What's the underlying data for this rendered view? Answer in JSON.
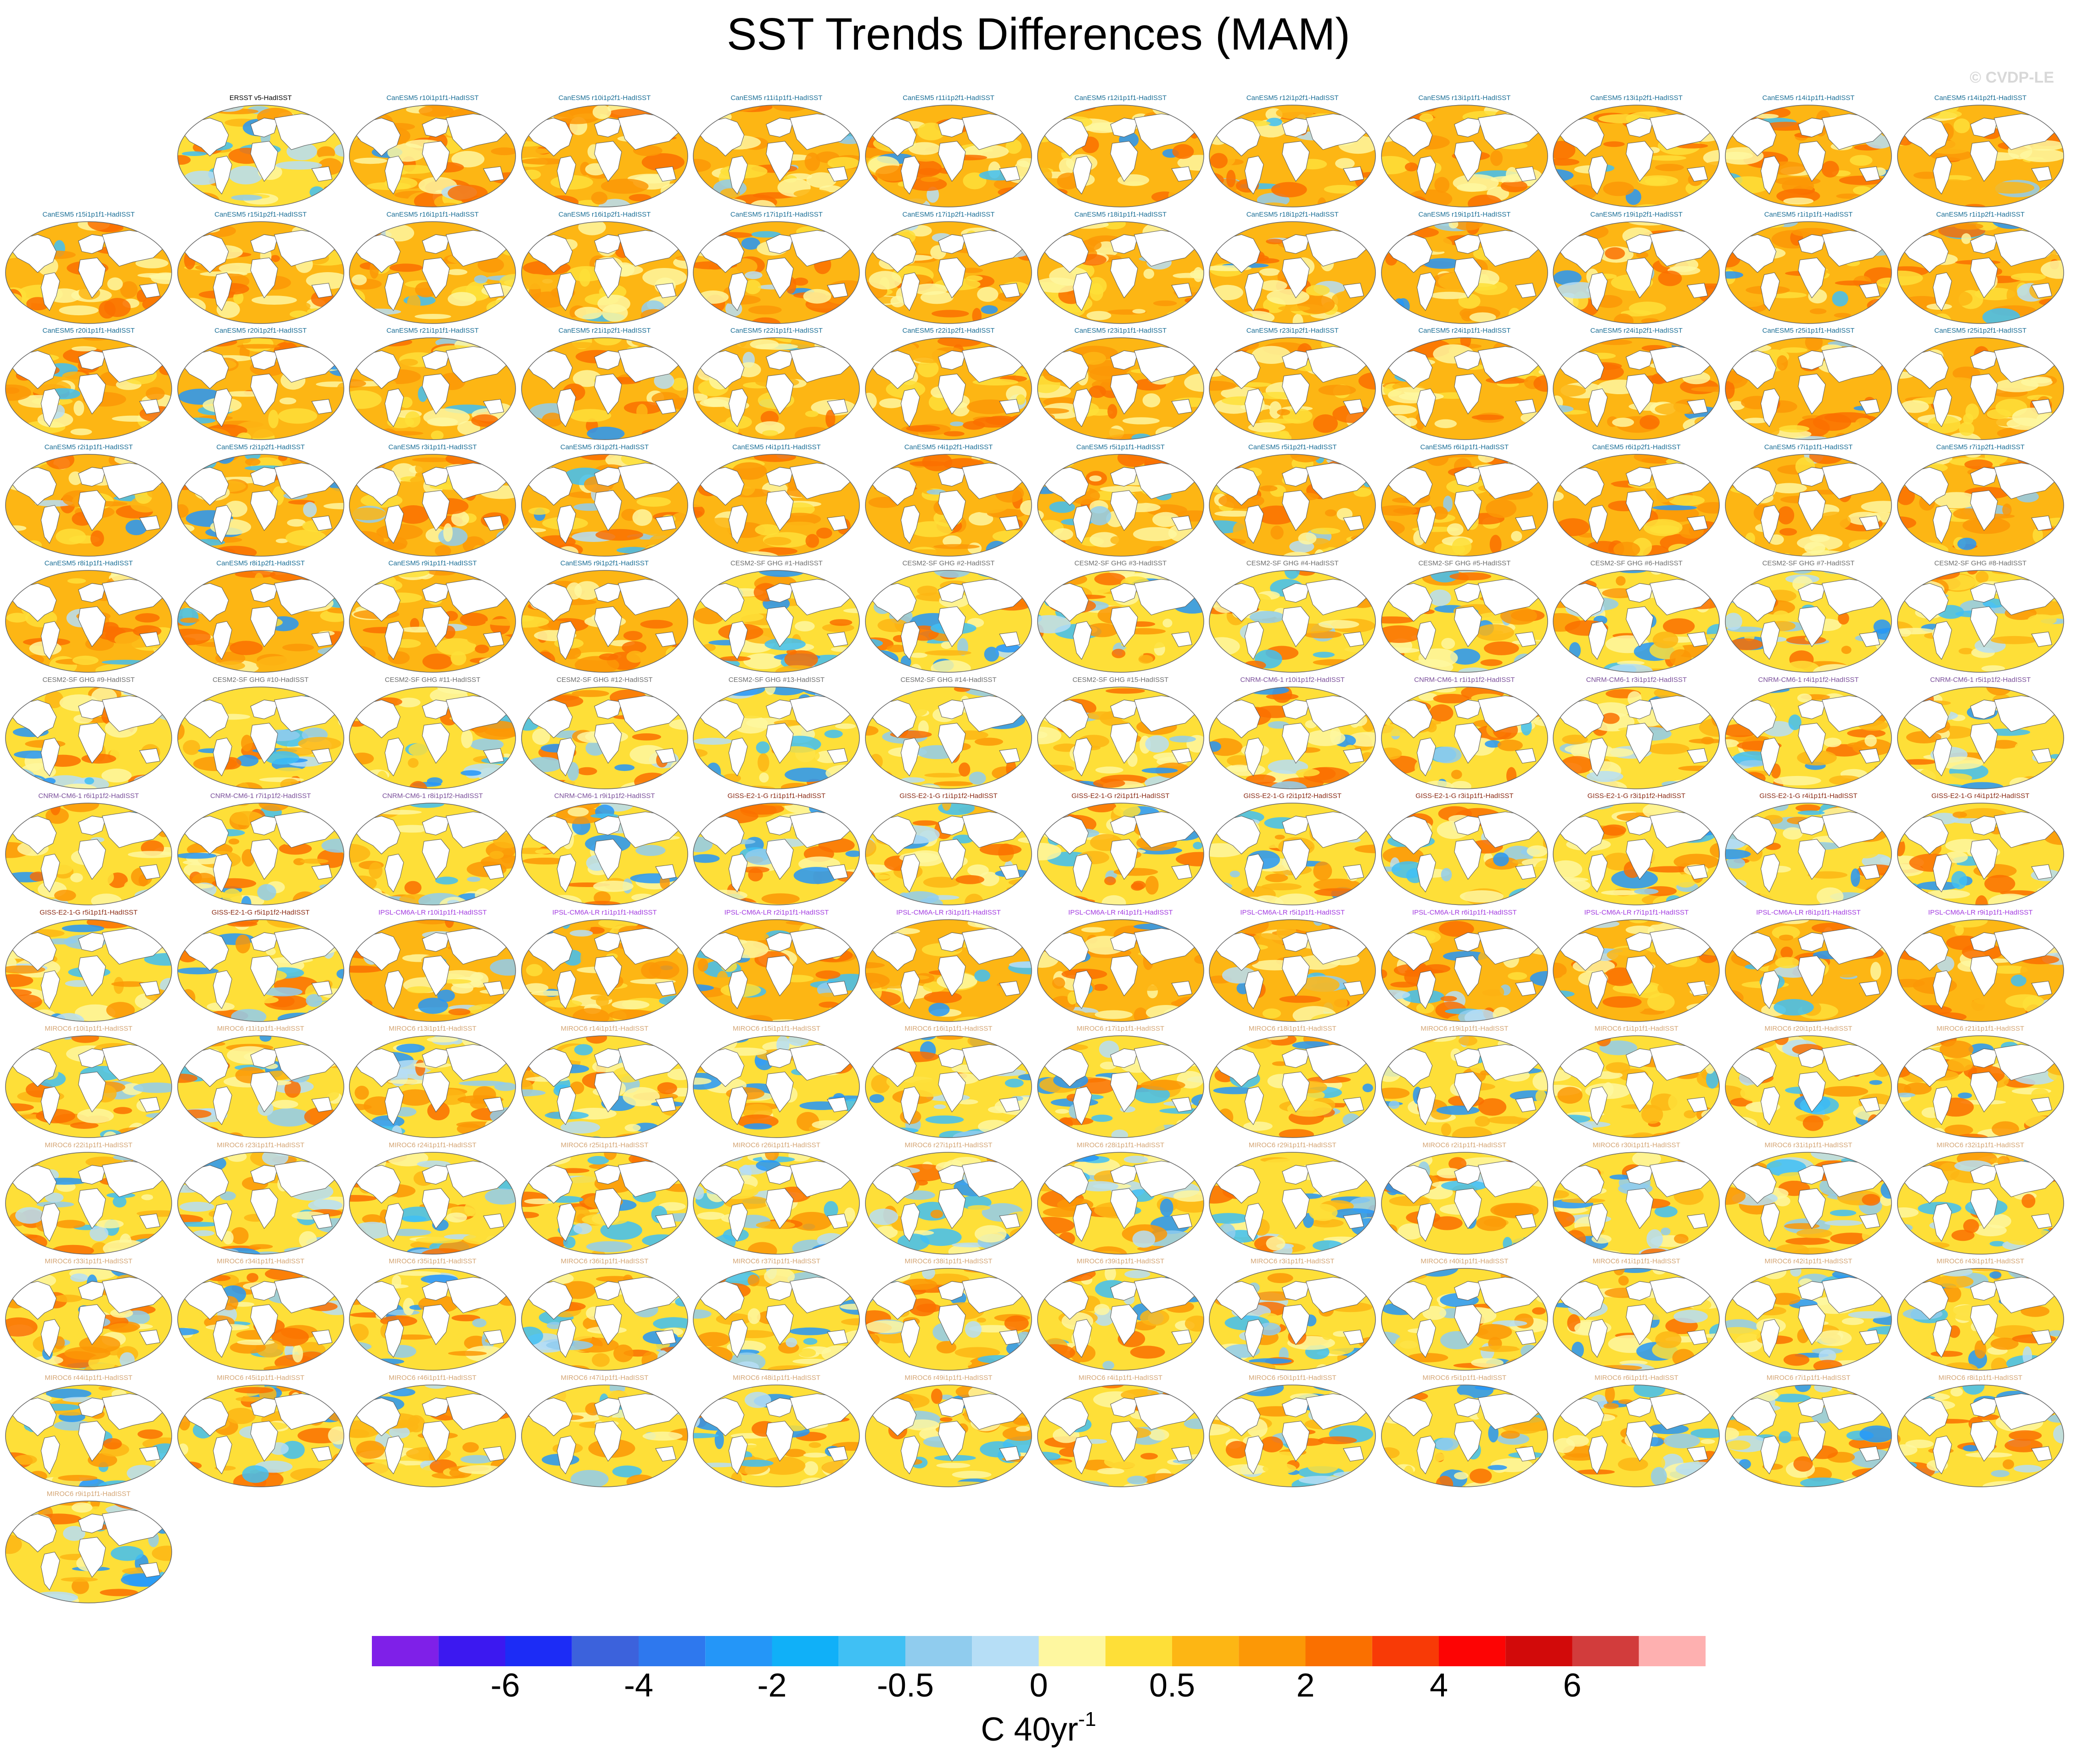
{
  "title": "SST Trends Differences (MAM)",
  "watermark": "© CVDP-LE",
  "chart_data": {
    "type": "map-grid",
    "projection": "Robinson (global ocean, land masked white)",
    "units_main": "C 40yr",
    "units_exp": "-1",
    "colorbar": {
      "colors": [
        "#7f20e8",
        "#3c18f0",
        "#1c2cf6",
        "#3c62dc",
        "#2e78ee",
        "#2496f8",
        "#10b0f8",
        "#40c0f4",
        "#90ccee",
        "#b6def6",
        "#fef7a0",
        "#fedf38",
        "#fdb614",
        "#fc9806",
        "#fa7000",
        "#f83a06",
        "#fd0404",
        "#d20a0a",
        "#d23c3c",
        "#feb0b0"
      ],
      "tick_labels": [
        "-6",
        "-4",
        "-2",
        "-0.5",
        "0",
        "0.5",
        "2",
        "4",
        "6"
      ]
    },
    "panel_style": {
      "ERSST": {
        "warm": 0.3,
        "cool": 0.35
      },
      "CanESM5": {
        "warm": 0.85,
        "cool": 0.1
      },
      "CESM2": {
        "warm": 0.6,
        "cool": 0.35
      },
      "CNRM": {
        "warm": 0.45,
        "cool": 0.3
      },
      "GISS": {
        "warm": 0.5,
        "cool": 0.4
      },
      "IPSL": {
        "warm": 0.7,
        "cool": 0.2
      },
      "MIROC6": {
        "warm": 0.5,
        "cool": 0.4
      }
    },
    "panels": [
      {
        "label": "ERSST v5-HadISST",
        "color": "#000000",
        "family": "ERSST"
      },
      {
        "label": "CanESM5 r10i1p1f1-HadISST",
        "color": "#1a6e96",
        "family": "CanESM5"
      },
      {
        "label": "CanESM5 r10i1p2f1-HadISST",
        "color": "#1a6e96",
        "family": "CanESM5"
      },
      {
        "label": "CanESM5 r11i1p1f1-HadISST",
        "color": "#1a6e96",
        "family": "CanESM5"
      },
      {
        "label": "CanESM5 r11i1p2f1-HadISST",
        "color": "#1a6e96",
        "family": "CanESM5"
      },
      {
        "label": "CanESM5 r12i1p1f1-HadISST",
        "color": "#1a6e96",
        "family": "CanESM5"
      },
      {
        "label": "CanESM5 r12i1p2f1-HadISST",
        "color": "#1a6e96",
        "family": "CanESM5"
      },
      {
        "label": "CanESM5 r13i1p1f1-HadISST",
        "color": "#1a6e96",
        "family": "CanESM5"
      },
      {
        "label": "CanESM5 r13i1p2f1-HadISST",
        "color": "#1a6e96",
        "family": "CanESM5"
      },
      {
        "label": "CanESM5 r14i1p1f1-HadISST",
        "color": "#1a6e96",
        "family": "CanESM5"
      },
      {
        "label": "CanESM5 r14i1p2f1-HadISST",
        "color": "#1a6e96",
        "family": "CanESM5"
      },
      {
        "label": "CanESM5 r15i1p1f1-HadISST",
        "color": "#1a6e96",
        "family": "CanESM5"
      },
      {
        "label": "CanESM5 r15i1p2f1-HadISST",
        "color": "#1a6e96",
        "family": "CanESM5"
      },
      {
        "label": "CanESM5 r16i1p1f1-HadISST",
        "color": "#1a6e96",
        "family": "CanESM5"
      },
      {
        "label": "CanESM5 r16i1p2f1-HadISST",
        "color": "#1a6e96",
        "family": "CanESM5"
      },
      {
        "label": "CanESM5 r17i1p1f1-HadISST",
        "color": "#1a6e96",
        "family": "CanESM5"
      },
      {
        "label": "CanESM5 r17i1p2f1-HadISST",
        "color": "#1a6e96",
        "family": "CanESM5"
      },
      {
        "label": "CanESM5 r18i1p1f1-HadISST",
        "color": "#1a6e96",
        "family": "CanESM5"
      },
      {
        "label": "CanESM5 r18i1p2f1-HadISST",
        "color": "#1a6e96",
        "family": "CanESM5"
      },
      {
        "label": "CanESM5 r19i1p1f1-HadISST",
        "color": "#1a6e96",
        "family": "CanESM5"
      },
      {
        "label": "CanESM5 r19i1p2f1-HadISST",
        "color": "#1a6e96",
        "family": "CanESM5"
      },
      {
        "label": "CanESM5 r1i1p1f1-HadISST",
        "color": "#1a6e96",
        "family": "CanESM5"
      },
      {
        "label": "CanESM5 r1i1p2f1-HadISST",
        "color": "#1a6e96",
        "family": "CanESM5"
      },
      {
        "label": "CanESM5 r20i1p1f1-HadISST",
        "color": "#1a6e96",
        "family": "CanESM5"
      },
      {
        "label": "CanESM5 r20i1p2f1-HadISST",
        "color": "#1a6e96",
        "family": "CanESM5"
      },
      {
        "label": "CanESM5 r21i1p1f1-HadISST",
        "color": "#1a6e96",
        "family": "CanESM5"
      },
      {
        "label": "CanESM5 r21i1p2f1-HadISST",
        "color": "#1a6e96",
        "family": "CanESM5"
      },
      {
        "label": "CanESM5 r22i1p1f1-HadISST",
        "color": "#1a6e96",
        "family": "CanESM5"
      },
      {
        "label": "CanESM5 r22i1p2f1-HadISST",
        "color": "#1a6e96",
        "family": "CanESM5"
      },
      {
        "label": "CanESM5 r23i1p1f1-HadISST",
        "color": "#1a6e96",
        "family": "CanESM5"
      },
      {
        "label": "CanESM5 r23i1p2f1-HadISST",
        "color": "#1a6e96",
        "family": "CanESM5"
      },
      {
        "label": "CanESM5 r24i1p1f1-HadISST",
        "color": "#1a6e96",
        "family": "CanESM5"
      },
      {
        "label": "CanESM5 r24i1p2f1-HadISST",
        "color": "#1a6e96",
        "family": "CanESM5"
      },
      {
        "label": "CanESM5 r25i1p1f1-HadISST",
        "color": "#1a6e96",
        "family": "CanESM5"
      },
      {
        "label": "CanESM5 r25i1p2f1-HadISST",
        "color": "#1a6e96",
        "family": "CanESM5"
      },
      {
        "label": "CanESM5 r2i1p1f1-HadISST",
        "color": "#1a6e96",
        "family": "CanESM5"
      },
      {
        "label": "CanESM5 r2i1p2f1-HadISST",
        "color": "#1a6e96",
        "family": "CanESM5"
      },
      {
        "label": "CanESM5 r3i1p1f1-HadISST",
        "color": "#1a6e96",
        "family": "CanESM5"
      },
      {
        "label": "CanESM5 r3i1p2f1-HadISST",
        "color": "#1a6e96",
        "family": "CanESM5"
      },
      {
        "label": "CanESM5 r4i1p1f1-HadISST",
        "color": "#1a6e96",
        "family": "CanESM5"
      },
      {
        "label": "CanESM5 r4i1p2f1-HadISST",
        "color": "#1a6e96",
        "family": "CanESM5"
      },
      {
        "label": "CanESM5 r5i1p1f1-HadISST",
        "color": "#1a6e96",
        "family": "CanESM5"
      },
      {
        "label": "CanESM5 r5i1p2f1-HadISST",
        "color": "#1a6e96",
        "family": "CanESM5"
      },
      {
        "label": "CanESM5 r6i1p1f1-HadISST",
        "color": "#1a6e96",
        "family": "CanESM5"
      },
      {
        "label": "CanESM5 r6i1p2f1-HadISST",
        "color": "#1a6e96",
        "family": "CanESM5"
      },
      {
        "label": "CanESM5 r7i1p1f1-HadISST",
        "color": "#1a6e96",
        "family": "CanESM5"
      },
      {
        "label": "CanESM5 r7i1p2f1-HadISST",
        "color": "#1a6e96",
        "family": "CanESM5"
      },
      {
        "label": "CanESM5 r8i1p1f1-HadISST",
        "color": "#1a6e96",
        "family": "CanESM5"
      },
      {
        "label": "CanESM5 r8i1p2f1-HadISST",
        "color": "#1a6e96",
        "family": "CanESM5"
      },
      {
        "label": "CanESM5 r9i1p1f1-HadISST",
        "color": "#1a6e96",
        "family": "CanESM5"
      },
      {
        "label": "CanESM5 r9i1p2f1-HadISST",
        "color": "#1a6e96",
        "family": "CanESM5"
      },
      {
        "label": "CESM2-SF GHG #1-HadISST",
        "color": "#6e6e6e",
        "family": "CESM2"
      },
      {
        "label": "CESM2-SF GHG #2-HadISST",
        "color": "#6e6e6e",
        "family": "CESM2"
      },
      {
        "label": "CESM2-SF GHG #3-HadISST",
        "color": "#6e6e6e",
        "family": "CESM2"
      },
      {
        "label": "CESM2-SF GHG #4-HadISST",
        "color": "#6e6e6e",
        "family": "CESM2"
      },
      {
        "label": "CESM2-SF GHG #5-HadISST",
        "color": "#6e6e6e",
        "family": "CESM2"
      },
      {
        "label": "CESM2-SF GHG #6-HadISST",
        "color": "#6e6e6e",
        "family": "CESM2"
      },
      {
        "label": "CESM2-SF GHG #7-HadISST",
        "color": "#6e6e6e",
        "family": "CESM2"
      },
      {
        "label": "CESM2-SF GHG #8-HadISST",
        "color": "#6e6e6e",
        "family": "CESM2"
      },
      {
        "label": "CESM2-SF GHG #9-HadISST",
        "color": "#6e6e6e",
        "family": "CESM2"
      },
      {
        "label": "CESM2-SF GHG #10-HadISST",
        "color": "#6e6e6e",
        "family": "CESM2"
      },
      {
        "label": "CESM2-SF GHG #11-HadISST",
        "color": "#6e6e6e",
        "family": "CESM2"
      },
      {
        "label": "CESM2-SF GHG #12-HadISST",
        "color": "#6e6e6e",
        "family": "CESM2"
      },
      {
        "label": "CESM2-SF GHG #13-HadISST",
        "color": "#6e6e6e",
        "family": "CESM2"
      },
      {
        "label": "CESM2-SF GHG #14-HadISST",
        "color": "#6e6e6e",
        "family": "CESM2"
      },
      {
        "label": "CESM2-SF GHG #15-HadISST",
        "color": "#6e6e6e",
        "family": "CESM2"
      },
      {
        "label": "CNRM-CM6-1 r10i1p1f2-HadISST",
        "color": "#7a4f9a",
        "family": "CNRM"
      },
      {
        "label": "CNRM-CM6-1 r1i1p1f2-HadISST",
        "color": "#7a4f9a",
        "family": "CNRM"
      },
      {
        "label": "CNRM-CM6-1 r3i1p1f2-HadISST",
        "color": "#7a4f9a",
        "family": "CNRM"
      },
      {
        "label": "CNRM-CM6-1 r4i1p1f2-HadISST",
        "color": "#7a4f9a",
        "family": "CNRM"
      },
      {
        "label": "CNRM-CM6-1 r5i1p1f2-HadISST",
        "color": "#7a4f9a",
        "family": "CNRM"
      },
      {
        "label": "CNRM-CM6-1 r6i1p1f2-HadISST",
        "color": "#7a4f9a",
        "family": "CNRM"
      },
      {
        "label": "CNRM-CM6-1 r7i1p1f2-HadISST",
        "color": "#7a4f9a",
        "family": "CNRM"
      },
      {
        "label": "CNRM-CM6-1 r8i1p1f2-HadISST",
        "color": "#7a4f9a",
        "family": "CNRM"
      },
      {
        "label": "CNRM-CM6-1 r9i1p1f2-HadISST",
        "color": "#7a4f9a",
        "family": "CNRM"
      },
      {
        "label": "GISS-E2-1-G r1i1p1f1-HadISST",
        "color": "#8a2a14",
        "family": "GISS"
      },
      {
        "label": "GISS-E2-1-G r1i1p1f2-HadISST",
        "color": "#8a2a14",
        "family": "GISS"
      },
      {
        "label": "GISS-E2-1-G r2i1p1f1-HadISST",
        "color": "#8a2a14",
        "family": "GISS"
      },
      {
        "label": "GISS-E2-1-G r2i1p1f2-HadISST",
        "color": "#8a2a14",
        "family": "GISS"
      },
      {
        "label": "GISS-E2-1-G r3i1p1f1-HadISST",
        "color": "#8a2a14",
        "family": "GISS"
      },
      {
        "label": "GISS-E2-1-G r3i1p1f2-HadISST",
        "color": "#8a2a14",
        "family": "GISS"
      },
      {
        "label": "GISS-E2-1-G r4i1p1f1-HadISST",
        "color": "#8a2a14",
        "family": "GISS"
      },
      {
        "label": "GISS-E2-1-G r4i1p1f2-HadISST",
        "color": "#8a2a14",
        "family": "GISS"
      },
      {
        "label": "GISS-E2-1-G r5i1p1f1-HadISST",
        "color": "#8a2a14",
        "family": "GISS"
      },
      {
        "label": "GISS-E2-1-G r5i1p1f2-HadISST",
        "color": "#8a2a14",
        "family": "GISS"
      },
      {
        "label": "IPSL-CM6A-LR r10i1p1f1-HadISST",
        "color": "#a23ae0",
        "family": "IPSL"
      },
      {
        "label": "IPSL-CM6A-LR r1i1p1f1-HadISST",
        "color": "#a23ae0",
        "family": "IPSL"
      },
      {
        "label": "IPSL-CM6A-LR r2i1p1f1-HadISST",
        "color": "#a23ae0",
        "family": "IPSL"
      },
      {
        "label": "IPSL-CM6A-LR r3i1p1f1-HadISST",
        "color": "#a23ae0",
        "family": "IPSL"
      },
      {
        "label": "IPSL-CM6A-LR r4i1p1f1-HadISST",
        "color": "#a23ae0",
        "family": "IPSL"
      },
      {
        "label": "IPSL-CM6A-LR r5i1p1f1-HadISST",
        "color": "#a23ae0",
        "family": "IPSL"
      },
      {
        "label": "IPSL-CM6A-LR r6i1p1f1-HadISST",
        "color": "#a23ae0",
        "family": "IPSL"
      },
      {
        "label": "IPSL-CM6A-LR r7i1p1f1-HadISST",
        "color": "#a23ae0",
        "family": "IPSL"
      },
      {
        "label": "IPSL-CM6A-LR r8i1p1f1-HadISST",
        "color": "#a23ae0",
        "family": "IPSL"
      },
      {
        "label": "IPSL-CM6A-LR r9i1p1f1-HadISST",
        "color": "#a23ae0",
        "family": "IPSL"
      },
      {
        "label": "MIROC6 r10i1p1f1-HadISST",
        "color": "#d4a574",
        "family": "MIROC6"
      },
      {
        "label": "MIROC6 r11i1p1f1-HadISST",
        "color": "#d4a574",
        "family": "MIROC6"
      },
      {
        "label": "MIROC6 r13i1p1f1-HadISST",
        "color": "#d4a574",
        "family": "MIROC6"
      },
      {
        "label": "MIROC6 r14i1p1f1-HadISST",
        "color": "#d4a574",
        "family": "MIROC6"
      },
      {
        "label": "MIROC6 r15i1p1f1-HadISST",
        "color": "#d4a574",
        "family": "MIROC6"
      },
      {
        "label": "MIROC6 r16i1p1f1-HadISST",
        "color": "#d4a574",
        "family": "MIROC6"
      },
      {
        "label": "MIROC6 r17i1p1f1-HadISST",
        "color": "#d4a574",
        "family": "MIROC6"
      },
      {
        "label": "MIROC6 r18i1p1f1-HadISST",
        "color": "#d4a574",
        "family": "MIROC6"
      },
      {
        "label": "MIROC6 r19i1p1f1-HadISST",
        "color": "#d4a574",
        "family": "MIROC6"
      },
      {
        "label": "MIROC6 r1i1p1f1-HadISST",
        "color": "#d4a574",
        "family": "MIROC6"
      },
      {
        "label": "MIROC6 r20i1p1f1-HadISST",
        "color": "#d4a574",
        "family": "MIROC6"
      },
      {
        "label": "MIROC6 r21i1p1f1-HadISST",
        "color": "#d4a574",
        "family": "MIROC6"
      },
      {
        "label": "MIROC6 r22i1p1f1-HadISST",
        "color": "#d4a574",
        "family": "MIROC6"
      },
      {
        "label": "MIROC6 r23i1p1f1-HadISST",
        "color": "#d4a574",
        "family": "MIROC6"
      },
      {
        "label": "MIROC6 r24i1p1f1-HadISST",
        "color": "#d4a574",
        "family": "MIROC6"
      },
      {
        "label": "MIROC6 r25i1p1f1-HadISST",
        "color": "#d4a574",
        "family": "MIROC6"
      },
      {
        "label": "MIROC6 r26i1p1f1-HadISST",
        "color": "#d4a574",
        "family": "MIROC6"
      },
      {
        "label": "MIROC6 r27i1p1f1-HadISST",
        "color": "#d4a574",
        "family": "MIROC6"
      },
      {
        "label": "MIROC6 r28i1p1f1-HadISST",
        "color": "#d4a574",
        "family": "MIROC6"
      },
      {
        "label": "MIROC6 r29i1p1f1-HadISST",
        "color": "#d4a574",
        "family": "MIROC6"
      },
      {
        "label": "MIROC6 r2i1p1f1-HadISST",
        "color": "#d4a574",
        "family": "MIROC6"
      },
      {
        "label": "MIROC6 r30i1p1f1-HadISST",
        "color": "#d4a574",
        "family": "MIROC6"
      },
      {
        "label": "MIROC6 r31i1p1f1-HadISST",
        "color": "#d4a574",
        "family": "MIROC6"
      },
      {
        "label": "MIROC6 r32i1p1f1-HadISST",
        "color": "#d4a574",
        "family": "MIROC6"
      },
      {
        "label": "MIROC6 r33i1p1f1-HadISST",
        "color": "#d4a574",
        "family": "MIROC6"
      },
      {
        "label": "MIROC6 r34i1p1f1-HadISST",
        "color": "#d4a574",
        "family": "MIROC6"
      },
      {
        "label": "MIROC6 r35i1p1f1-HadISST",
        "color": "#d4a574",
        "family": "MIROC6"
      },
      {
        "label": "MIROC6 r36i1p1f1-HadISST",
        "color": "#d4a574",
        "family": "MIROC6"
      },
      {
        "label": "MIROC6 r37i1p1f1-HadISST",
        "color": "#d4a574",
        "family": "MIROC6"
      },
      {
        "label": "MIROC6 r38i1p1f1-HadISST",
        "color": "#d4a574",
        "family": "MIROC6"
      },
      {
        "label": "MIROC6 r39i1p1f1-HadISST",
        "color": "#d4a574",
        "family": "MIROC6"
      },
      {
        "label": "MIROC6 r3i1p1f1-HadISST",
        "color": "#d4a574",
        "family": "MIROC6"
      },
      {
        "label": "MIROC6 r40i1p1f1-HadISST",
        "color": "#d4a574",
        "family": "MIROC6"
      },
      {
        "label": "MIROC6 r41i1p1f1-HadISST",
        "color": "#d4a574",
        "family": "MIROC6"
      },
      {
        "label": "MIROC6 r42i1p1f1-HadISST",
        "color": "#d4a574",
        "family": "MIROC6"
      },
      {
        "label": "MIROC6 r43i1p1f1-HadISST",
        "color": "#d4a574",
        "family": "MIROC6"
      },
      {
        "label": "MIROC6 r44i1p1f1-HadISST",
        "color": "#d4a574",
        "family": "MIROC6"
      },
      {
        "label": "MIROC6 r45i1p1f1-HadISST",
        "color": "#d4a574",
        "family": "MIROC6"
      },
      {
        "label": "MIROC6 r46i1p1f1-HadISST",
        "color": "#d4a574",
        "family": "MIROC6"
      },
      {
        "label": "MIROC6 r47i1p1f1-HadISST",
        "color": "#d4a574",
        "family": "MIROC6"
      },
      {
        "label": "MIROC6 r48i1p1f1-HadISST",
        "color": "#d4a574",
        "family": "MIROC6"
      },
      {
        "label": "MIROC6 r49i1p1f1-HadISST",
        "color": "#d4a574",
        "family": "MIROC6"
      },
      {
        "label": "MIROC6 r4i1p1f1-HadISST",
        "color": "#d4a574",
        "family": "MIROC6"
      },
      {
        "label": "MIROC6 r50i1p1f1-HadISST",
        "color": "#d4a574",
        "family": "MIROC6"
      },
      {
        "label": "MIROC6 r5i1p1f1-HadISST",
        "color": "#d4a574",
        "family": "MIROC6"
      },
      {
        "label": "MIROC6 r6i1p1f1-HadISST",
        "color": "#d4a574",
        "family": "MIROC6"
      },
      {
        "label": "MIROC6 r7i1p1f1-HadISST",
        "color": "#d4a574",
        "family": "MIROC6"
      },
      {
        "label": "MIROC6 r8i1p1f1-HadISST",
        "color": "#d4a574",
        "family": "MIROC6"
      },
      {
        "label": "MIROC6 r9i1p1f1-HadISST",
        "color": "#d4a574",
        "family": "MIROC6"
      }
    ]
  }
}
